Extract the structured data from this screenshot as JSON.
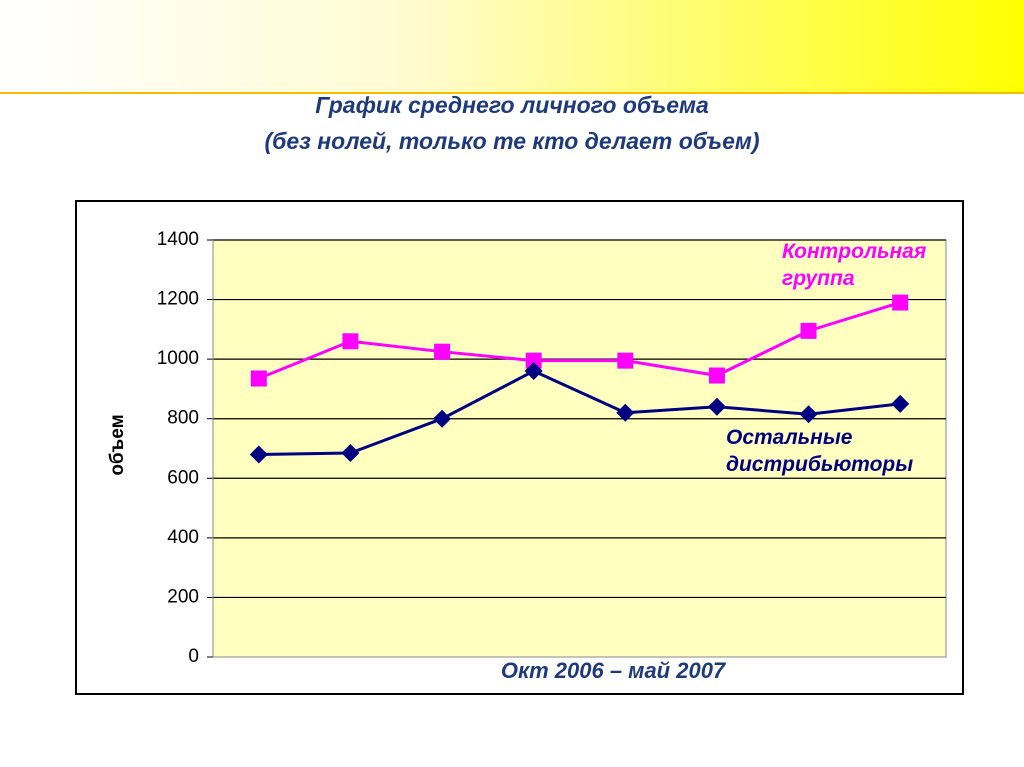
{
  "chart_data": {
    "type": "line",
    "title": "График среднего личного объема",
    "subtitle": "(без нолей, только те кто делает объем)",
    "y_label": "объем",
    "x_label": "Окт 2006 – май 2007",
    "categories": [
      null,
      null,
      null,
      null,
      null,
      null,
      null,
      null
    ],
    "series": [
      {
        "name": "Контрольная группа",
        "color": "#ff00ff",
        "marker": "square",
        "values": [
          935,
          1060,
          1025,
          995,
          995,
          945,
          1095,
          1190
        ]
      },
      {
        "name": "Остальные дистрибьюторы",
        "color": "#000080",
        "marker": "diamond",
        "values": [
          680,
          685,
          800,
          960,
          820,
          840,
          815,
          850
        ]
      }
    ],
    "ylim": [
      0,
      1400
    ],
    "yticks": [
      0,
      200,
      400,
      600,
      800,
      1000,
      1200,
      1400
    ],
    "grid": true
  }
}
